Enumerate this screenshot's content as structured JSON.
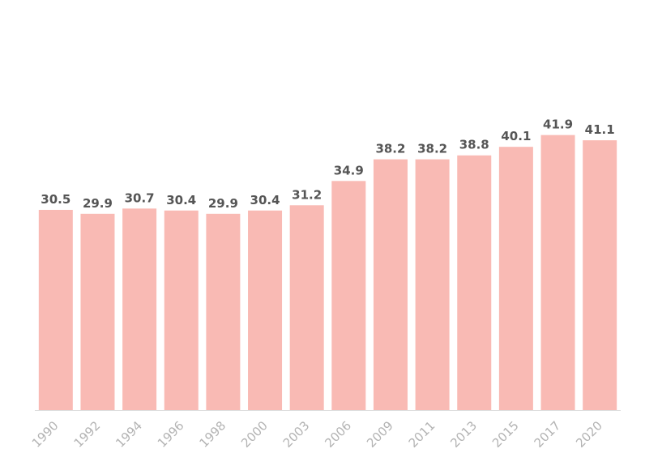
{
  "chart_data": {
    "type": "bar",
    "categories": [
      "1990",
      "1992",
      "1994",
      "1996",
      "1998",
      "2000",
      "2003",
      "2006",
      "2009",
      "2011",
      "2013",
      "2015",
      "2017",
      "2020"
    ],
    "values": [
      30.5,
      29.9,
      30.7,
      30.4,
      29.9,
      30.4,
      31.2,
      34.9,
      38.2,
      38.2,
      38.8,
      40.1,
      41.9,
      41.1
    ],
    "value_labels": [
      "30.5",
      "29.9",
      "30.7",
      "30.4",
      "29.9",
      "30.4",
      "31.2",
      "34.9",
      "38.2",
      "38.2",
      "38.8",
      "40.1",
      "41.9",
      "41.1"
    ],
    "title": "",
    "xlabel": "",
    "ylabel": "",
    "ylim": [
      0,
      60
    ],
    "grid": false,
    "legend": "none",
    "bar_color": "#f9bab4",
    "label_color": "#555555",
    "tick_color": "#b3b3b3",
    "axis_color": "#dddddd"
  }
}
